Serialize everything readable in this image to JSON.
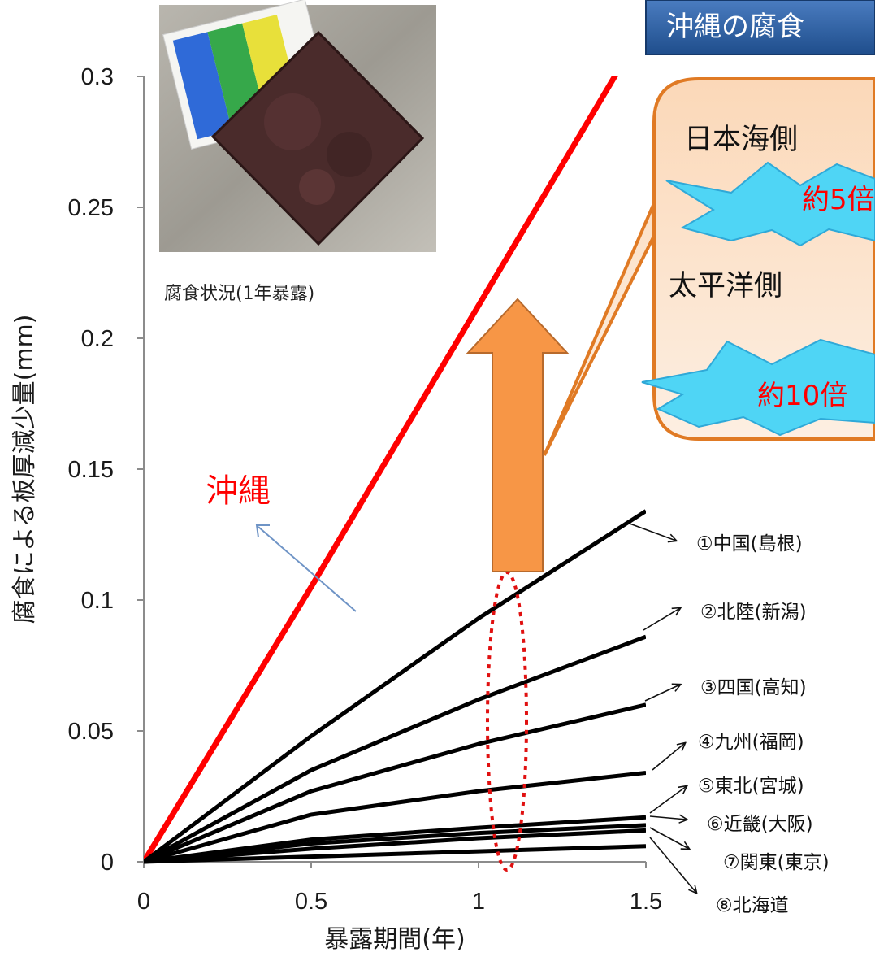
{
  "chart_data": {
    "type": "line",
    "xlabel": "暴露期間(年)",
    "ylabel": "腐食による板厚減少量(mm)",
    "xlim": [
      0,
      1.5
    ],
    "ylim": [
      0,
      0.3
    ],
    "x_ticks": [
      "0",
      "0.5",
      "1",
      "1.5"
    ],
    "y_ticks": [
      "0",
      "0.05",
      "0.1",
      "0.15",
      "0.2",
      "0.25",
      "0.3"
    ],
    "grid": false,
    "series": [
      {
        "name": "沖縄",
        "color": "#ff0000",
        "x": [
          0,
          0.5,
          1.5
        ],
        "y": [
          0,
          0.105,
          0.32
        ]
      },
      {
        "name": "①中国(島根)",
        "color": "#000000",
        "x": [
          0,
          0.5,
          1.0,
          1.5
        ],
        "y": [
          0,
          0.048,
          0.093,
          0.134
        ]
      },
      {
        "name": "②北陸(新潟)",
        "color": "#000000",
        "x": [
          0,
          0.5,
          1.0,
          1.5
        ],
        "y": [
          0,
          0.035,
          0.062,
          0.086
        ]
      },
      {
        "name": "③四国(高知)",
        "color": "#000000",
        "x": [
          0,
          0.5,
          1.0,
          1.5
        ],
        "y": [
          0,
          0.027,
          0.045,
          0.06
        ]
      },
      {
        "name": "④九州(福岡)",
        "color": "#000000",
        "x": [
          0,
          0.5,
          1.0,
          1.5
        ],
        "y": [
          0,
          0.018,
          0.027,
          0.034
        ]
      },
      {
        "name": "⑤東北(宮城)",
        "color": "#000000",
        "x": [
          0,
          0.5,
          1.0,
          1.5
        ],
        "y": [
          0,
          0.0085,
          0.013,
          0.017
        ]
      },
      {
        "name": "⑥近畿(大阪)",
        "color": "#000000",
        "x": [
          0,
          0.5,
          1.0,
          1.5
        ],
        "y": [
          0,
          0.007,
          0.011,
          0.014
        ]
      },
      {
        "name": "⑦関東(東京)",
        "color": "#000000",
        "x": [
          0,
          0.5,
          1.0,
          1.5
        ],
        "y": [
          0,
          0.005,
          0.009,
          0.012
        ]
      },
      {
        "name": "⑧北海道",
        "color": "#000000",
        "x": [
          0,
          0.5,
          1.0,
          1.5
        ],
        "y": [
          0,
          0.002,
          0.004,
          0.006
        ]
      }
    ]
  },
  "photo": {
    "caption": "腐食状況(1年暴露)"
  },
  "okinawa_label": "沖縄",
  "title_banner": "沖縄の腐食",
  "callout": {
    "line1": "日本海側",
    "burst1": "約5倍",
    "line2": "太平洋側",
    "burst2": "約10倍"
  },
  "labels": [
    "①中国(島根)",
    "②北陸(新潟)",
    "③四国(高知)",
    "④九州(福岡)",
    "⑤東北(宮城)",
    "⑥近畿(大阪)",
    "⑦関東(東京)",
    "⑧北海道"
  ],
  "colors": {
    "okinawa": "#ff0000",
    "arrow": "#f79646",
    "banner": "#2e5fa3",
    "callout_fill": "#fbd4b4",
    "burst": "#4fd5f5"
  }
}
